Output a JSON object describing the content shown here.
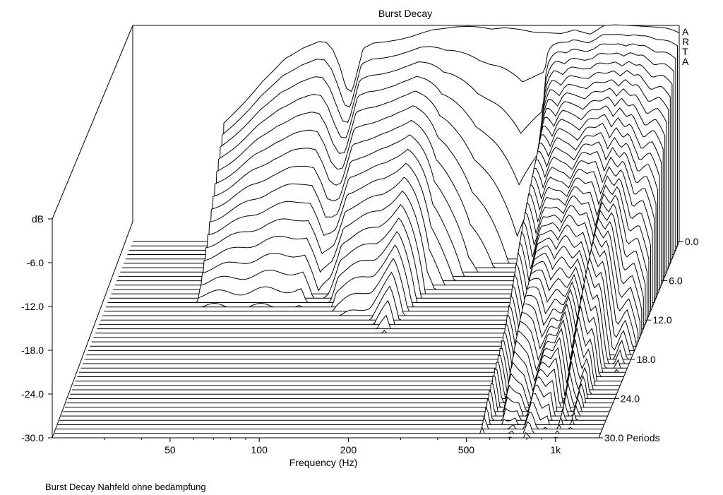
{
  "chart_data": {
    "type": "waterfall",
    "title": "Burst Decay",
    "subtitle": "Burst Decay Nahfeld ohne bedämpfung",
    "watermark": "ARTA",
    "xlabel": "Frequency (Hz)",
    "ylabel": "dB",
    "zlabel": "Periods",
    "x_scale": "log",
    "x_range": [
      20,
      1400
    ],
    "x_ticks": [
      {
        "value": 50,
        "label": "50"
      },
      {
        "value": 100,
        "label": "100"
      },
      {
        "value": 200,
        "label": "200"
      },
      {
        "value": 500,
        "label": "500"
      },
      {
        "value": 1000,
        "label": "1k"
      }
    ],
    "y_range": [
      -30,
      0
    ],
    "y_ticks": [
      {
        "value": 0,
        "label": "dB"
      },
      {
        "value": -6,
        "label": "-6.0"
      },
      {
        "value": -12,
        "label": "-12.0"
      },
      {
        "value": -18,
        "label": "-18.0"
      },
      {
        "value": -24,
        "label": "-24.0"
      },
      {
        "value": -30,
        "label": "-30.0"
      }
    ],
    "z_range": [
      0,
      30
    ],
    "z_ticks": [
      {
        "value": 0,
        "label": "0.0"
      },
      {
        "value": 6,
        "label": "6.0"
      },
      {
        "value": 12,
        "label": "12.0"
      },
      {
        "value": 18,
        "label": "18.0"
      },
      {
        "value": 24,
        "label": "24.0"
      },
      {
        "value": 30,
        "label": "30.0 Periods"
      }
    ],
    "start_frequency_hz": 40,
    "initial_response": {
      "frequency": [
        40,
        45,
        55,
        65,
        75,
        85,
        90,
        95,
        100,
        105,
        110,
        115,
        120,
        130,
        145,
        160,
        175,
        190,
        205,
        225,
        245,
        270,
        295,
        325,
        360,
        400,
        450,
        500,
        560,
        620,
        700,
        780,
        850,
        950,
        1050,
        1150,
        1250,
        1330,
        1400
      ],
      "level_db": [
        -14,
        -12,
        -8,
        -5,
        -3.5,
        -2.6,
        -2.7,
        -3.8,
        -6,
        -9,
        -9.5,
        -6.5,
        -3.5,
        -2.8,
        -2.6,
        -2.3,
        -1.9,
        -1.4,
        -1.0,
        -0.8,
        -0.6,
        -0.5,
        -0.6,
        -0.9,
        -0.7,
        -0.9,
        -1.3,
        -1.4,
        -1.5,
        -1.0,
        -1.6,
        -0.4,
        -0.3,
        -0.4,
        -0.5,
        -0.6,
        -0.7,
        -1.0,
        -1.4
      ]
    },
    "slices": 46,
    "decay_profile": {
      "frequency": [
        40,
        90,
        100,
        110,
        120,
        160,
        190,
        230,
        300,
        420,
        500,
        560,
        600,
        640,
        700,
        740,
        800,
        850,
        900,
        950,
        1000,
        1050,
        1100,
        1150,
        1200,
        1300,
        1400
      ],
      "periods_to_floor": [
        10,
        10,
        8,
        9,
        11,
        12,
        14,
        8,
        5,
        3,
        4,
        30,
        22,
        30,
        30,
        26,
        30,
        28,
        30,
        24,
        30,
        26,
        28,
        22,
        18,
        20,
        16
      ]
    },
    "grid": false,
    "legend": "none"
  }
}
